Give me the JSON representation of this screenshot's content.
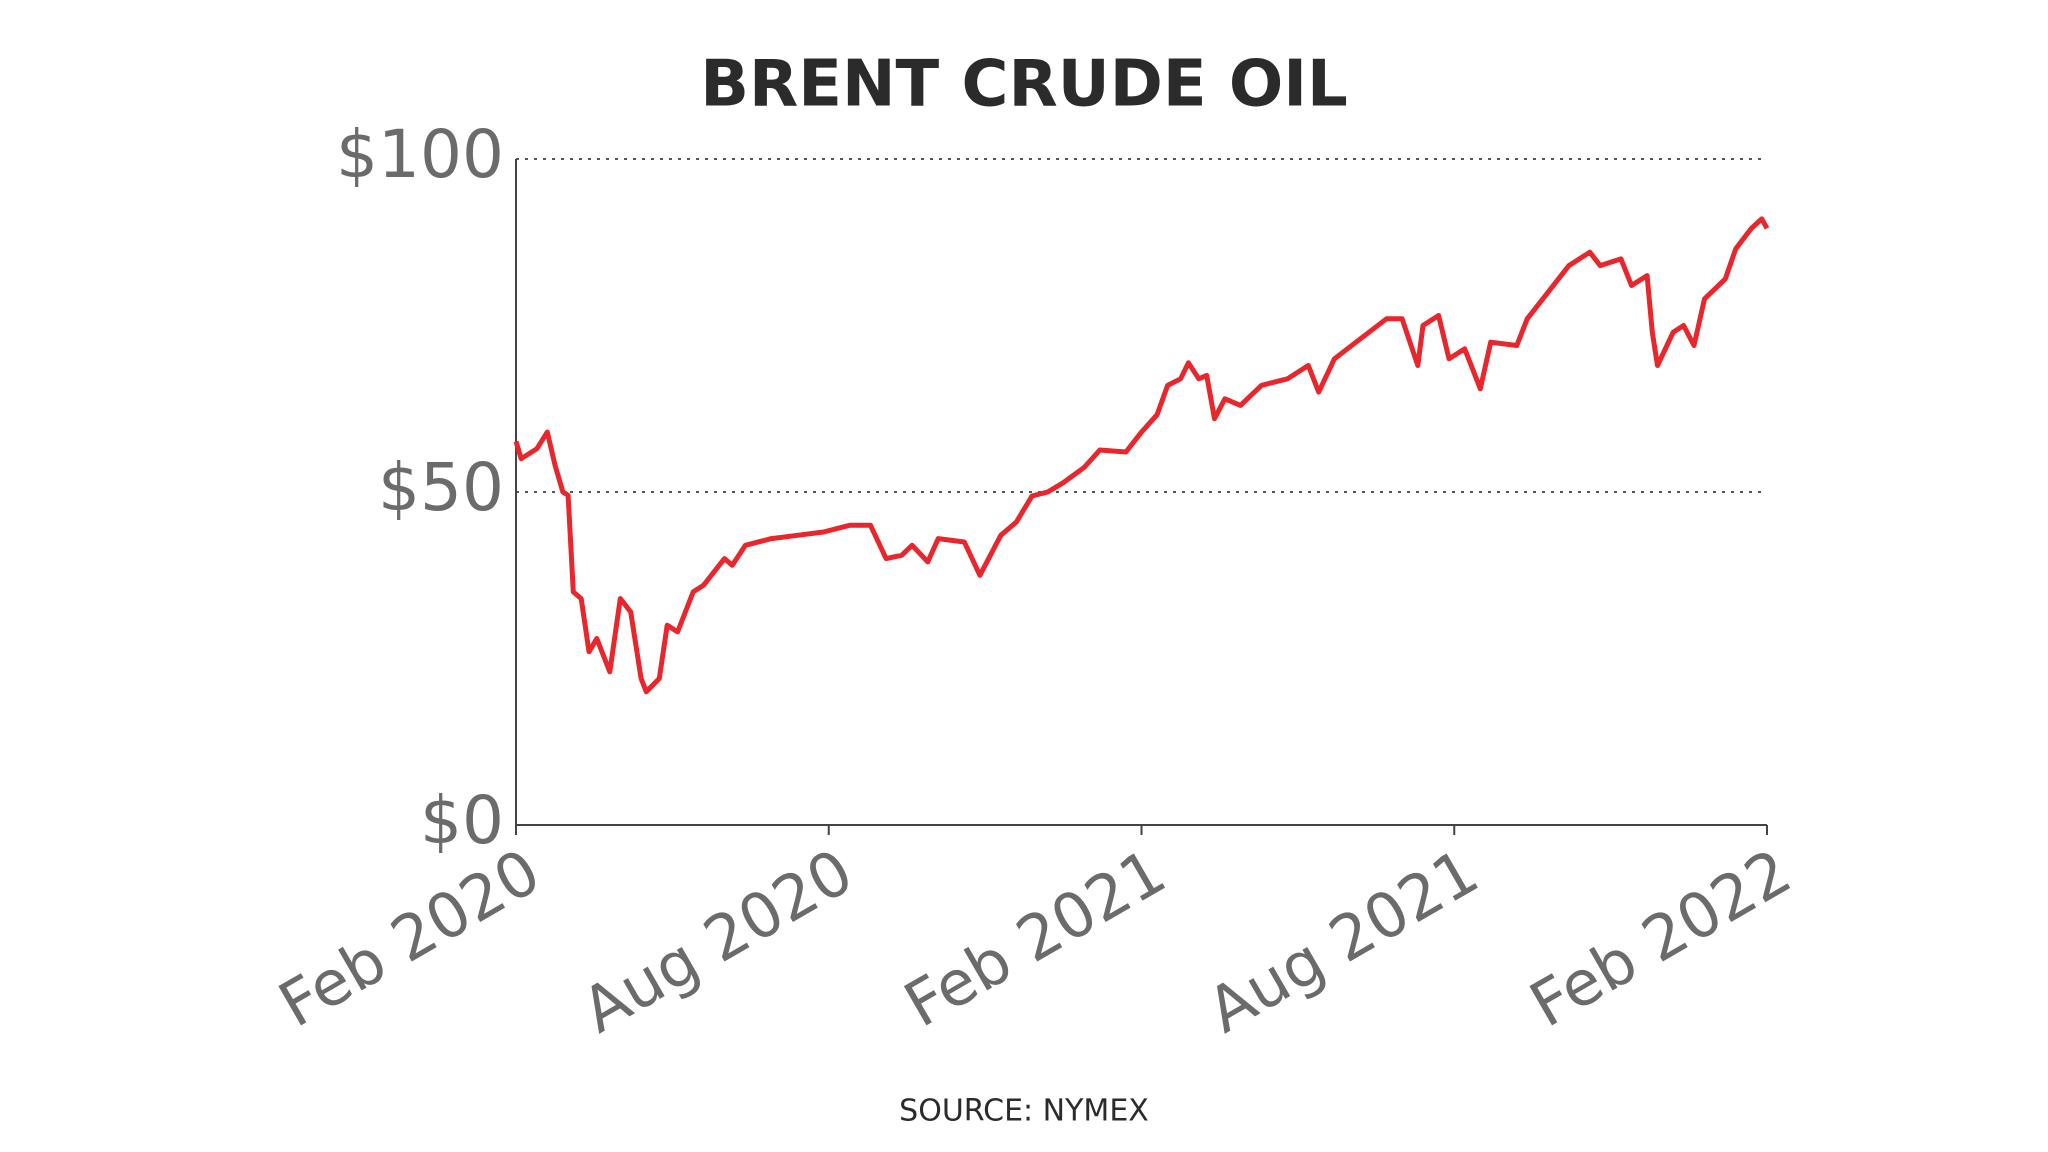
{
  "chart_data": {
    "type": "line",
    "title": "BRENT CRUDE OIL",
    "source": "SOURCE: NYMEX",
    "series": [
      {
        "name": "Brent",
        "color": "#e8262b",
        "x": [
          0,
          0.1,
          0.4,
          0.6,
          0.75,
          0.9,
          1.0,
          1.1,
          1.25,
          1.4,
          1.55,
          1.7,
          1.8,
          2.0,
          2.2,
          2.4,
          2.5,
          2.75,
          2.9,
          3.1,
          3.4,
          3.6,
          4.0,
          4.15,
          4.4,
          4.9,
          5.4,
          5.9,
          6.4,
          6.8,
          7.1,
          7.4,
          7.6,
          7.9,
          8.1,
          8.6,
          8.9,
          9.3,
          9.6,
          9.9,
          10.2,
          10.5,
          10.9,
          11.2,
          11.7,
          12.0,
          12.3,
          12.5,
          12.75,
          12.9,
          13.1,
          13.25,
          13.4,
          13.6,
          13.9,
          14.3,
          14.8,
          15.2,
          15.4,
          15.7,
          16.2,
          16.7,
          17.0,
          17.3,
          17.4,
          17.7,
          17.9,
          18.2,
          18.5,
          18.7,
          19.2,
          19.4,
          19.8,
          20.2,
          20.6,
          20.8,
          21.2,
          21.4,
          21.7,
          21.8,
          21.9,
          22.2,
          22.4,
          22.6,
          22.8,
          23.2,
          23.4,
          23.7,
          23.9,
          24.0
        ],
        "values": [
          57.6,
          55,
          56.5,
          59,
          54,
          50,
          49.5,
          35,
          34,
          26,
          28,
          25,
          23,
          34,
          32,
          22,
          20,
          22,
          30,
          29,
          35,
          36,
          40,
          39,
          42,
          43,
          43.5,
          44,
          45,
          45,
          40,
          40.5,
          42,
          39.5,
          43,
          42.5,
          37.5,
          43.5,
          45.5,
          49.4,
          50,
          51.4,
          53.7,
          56.3,
          56,
          59,
          61.6,
          66,
          67,
          69.4,
          67,
          67.5,
          61,
          64,
          63,
          66,
          67,
          69,
          65,
          70,
          73,
          76,
          76,
          69,
          75,
          76.5,
          70,
          71.5,
          65.5,
          72.5,
          72,
          76,
          80,
          84,
          86,
          84,
          85,
          81,
          82.5,
          74,
          69,
          74,
          75,
          72,
          79,
          82,
          86.5,
          89.6,
          91,
          89.6
        ]
      }
    ],
    "xlim": [
      0,
      24
    ],
    "xticks": [
      {
        "value": 0,
        "label": "Feb 2020"
      },
      {
        "value": 6,
        "label": "Aug 2020"
      },
      {
        "value": 12,
        "label": "Feb 2021"
      },
      {
        "value": 18,
        "label": "Aug 2021"
      },
      {
        "value": 24,
        "label": "Feb 2022"
      }
    ],
    "ylim": [
      0,
      100
    ],
    "yticks": [
      {
        "value": 0,
        "label": "$0"
      },
      {
        "value": 50,
        "label": "$50"
      },
      {
        "value": 100,
        "label": "$100"
      }
    ],
    "grid": true
  }
}
